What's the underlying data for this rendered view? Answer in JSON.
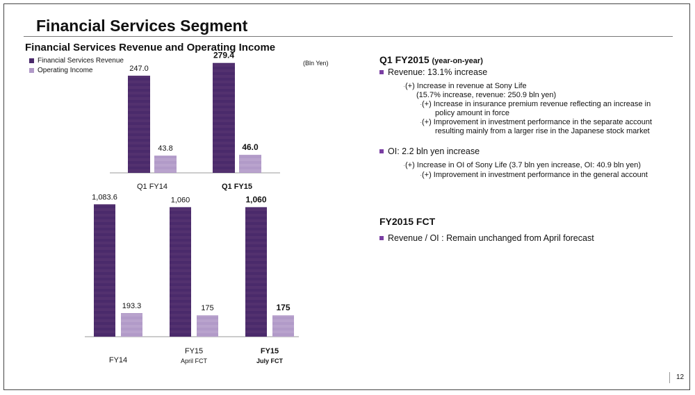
{
  "page": {
    "title": "Financial Services Segment",
    "number": "12"
  },
  "left": {
    "subtitle": "Financial Services Revenue and Operating Income",
    "unit": "(Bln Yen)",
    "legend": [
      {
        "name": "Financial Services Revenue",
        "color": "#4a2a6b"
      },
      {
        "name": "Operating Income",
        "color": "#b19ac8"
      }
    ]
  },
  "chart_data": [
    {
      "type": "bar",
      "categories": [
        "Q1 FY14",
        "Q1 FY15"
      ],
      "category_bold": [
        false,
        true
      ],
      "series": [
        {
          "name": "Financial Services Revenue",
          "values": [
            247.0,
            279.4
          ],
          "labels": [
            "247.0",
            "279.4"
          ],
          "color": "#4a2a6b"
        },
        {
          "name": "Operating Income",
          "values": [
            43.8,
            46.0
          ],
          "labels": [
            "43.8",
            "46.0"
          ],
          "color": "#b19ac8"
        }
      ],
      "ylim": [
        0,
        300
      ]
    },
    {
      "type": "bar",
      "categories": [
        "FY14",
        "FY15",
        "FY15"
      ],
      "category_sublabels": [
        "",
        "April FCT",
        "July FCT"
      ],
      "category_bold": [
        false,
        false,
        true
      ],
      "series": [
        {
          "name": "Financial Services Revenue",
          "values": [
            1083.6,
            1060,
            1060
          ],
          "labels": [
            "1,083.6",
            "1,060",
            "1,060"
          ],
          "color": "#4a2a6b"
        },
        {
          "name": "Operating Income",
          "values": [
            193.3,
            175,
            175
          ],
          "labels": [
            "193.3",
            "175",
            "175"
          ],
          "color": "#b19ac8"
        }
      ],
      "ylim": [
        0,
        1250
      ]
    }
  ],
  "right": {
    "q1": {
      "heading": "Q1 FY2015",
      "heading_suffix": "(year-on-year)",
      "revenue": "Revenue: 13.1% increase",
      "rev_lines": [
        "(+) Increase in revenue at Sony Life",
        "(15.7% increase, revenue: 250.9 bln yen)",
        "(+) Increase in insurance premium revenue reflecting an increase in",
        "policy amount in force",
        "(+) Improvement in investment performance in the separate account",
        "resulting mainly from a larger rise in the Japanese stock market"
      ],
      "oi": "OI: 2.2 bln yen increase",
      "oi_lines": [
        "(+) Increase in OI of Sony Life (3.7 bln yen increase, OI: 40.9 bln yen)",
        "(+) Improvement in investment performance in the general account"
      ]
    },
    "fct": {
      "heading": "FY2015 FCT",
      "line": "Revenue / OI : Remain unchanged from April forecast"
    }
  },
  "colors": {
    "accent": "#7a3fa3",
    "revenue": "#4a2a6b",
    "oi": "#b19ac8"
  }
}
